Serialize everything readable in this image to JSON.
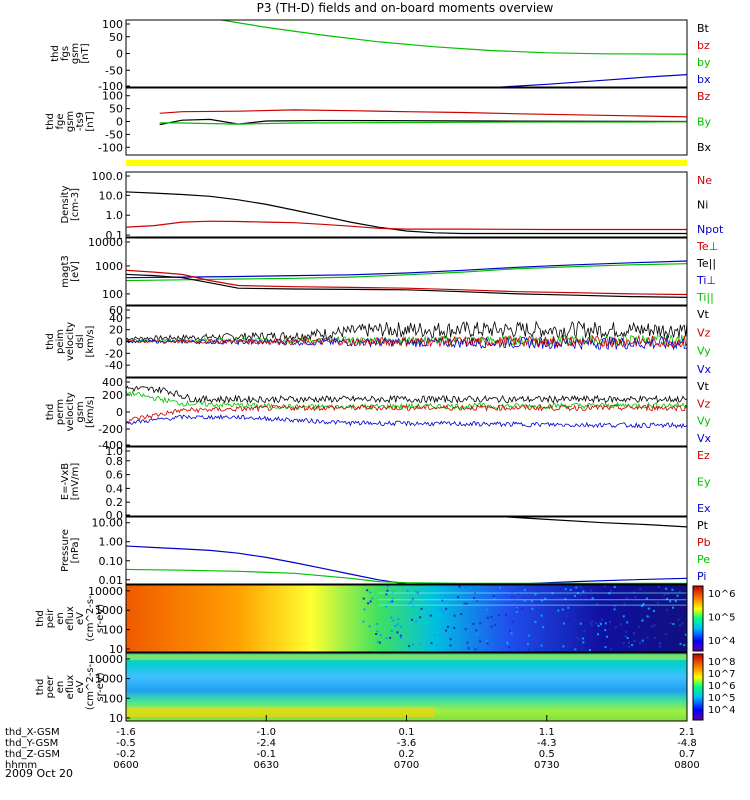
{
  "title": "P3 (TH-D) fields and on-board moments overview",
  "date": "2009 Oct 20",
  "colors": {
    "black": "#000000",
    "red": "#cc0000",
    "green": "#00c000",
    "blue": "#0000cc",
    "yellow": "#ffff00",
    "grid": "#000000"
  },
  "chart_data": {
    "type": "line",
    "x_time": [
      "0600",
      "0630",
      "0700",
      "0730",
      "0800"
    ],
    "orbit_rows": [
      {
        "label": "thd_X-GSM",
        "values": [
          "-1.6",
          "-1.0",
          "0.1",
          "1.1",
          "2.1"
        ]
      },
      {
        "label": "thd_Y-GSM",
        "values": [
          "-0.5",
          "-2.4",
          "-3.6",
          "-4.3",
          "-4.8"
        ]
      },
      {
        "label": "thd_Z-GSM",
        "values": [
          "-0.2",
          "-0.1",
          "0.2",
          "0.5",
          "0.7"
        ]
      },
      {
        "label": "hhmm",
        "values": [
          "0600",
          "0630",
          "0700",
          "0730",
          "0800"
        ]
      }
    ],
    "panels": [
      {
        "id": "fgs",
        "ylabel": [
          "thd",
          "fgs",
          "gsm",
          "[nT]"
        ],
        "scale": "linear",
        "ylim": [
          -100,
          100
        ],
        "ticks": [
          "100",
          "50",
          "0",
          "-50",
          "-100"
        ],
        "legend": [
          {
            "text": "Bt",
            "color": "#000000"
          },
          {
            "text": "bz",
            "color": "#cc0000"
          },
          {
            "text": "by",
            "color": "#00c000"
          },
          {
            "text": "bx",
            "color": "#0000cc"
          }
        ],
        "series": [
          {
            "color": "#00c000",
            "x": [
              0.17,
              0.25,
              0.35,
              0.45,
              0.55,
              0.65,
              0.75,
              0.85,
              1.0
            ],
            "y": [
              100,
              78,
              55,
              35,
              20,
              9,
              2,
              -1,
              -2
            ]
          },
          {
            "color": "#0000cc",
            "x": [
              0.67,
              0.75,
              0.85,
              0.93,
              1.0
            ],
            "y": [
              -100,
              -92,
              -80,
              -70,
              -63
            ]
          }
        ]
      },
      {
        "id": "fge",
        "ylabel": [
          "thd",
          "fge",
          "gsm",
          "-ts9",
          "[nT]"
        ],
        "scale": "linear",
        "ylim": [
          -130,
          130
        ],
        "ticks": [
          "100",
          "50",
          "0",
          "-50",
          "-100"
        ],
        "legend": [
          {
            "text": "Bz",
            "color": "#cc0000"
          },
          {
            "text": "By",
            "color": "#00c000"
          },
          {
            "text": "Bx",
            "color": "#000000"
          }
        ],
        "series": [
          {
            "color": "#cc0000",
            "x": [
              0.06,
              0.1,
              0.2,
              0.3,
              0.4,
              0.5,
              0.6,
              0.7,
              0.8,
              0.9,
              1.0
            ],
            "y": [
              32,
              38,
              40,
              45,
              42,
              38,
              35,
              30,
              26,
              22,
              18
            ]
          },
          {
            "color": "#000000",
            "x": [
              0.06,
              0.1,
              0.15,
              0.2,
              0.25,
              0.35,
              0.5,
              0.65,
              0.8,
              1.0
            ],
            "y": [
              -12,
              5,
              8,
              -10,
              2,
              4,
              3,
              2,
              1,
              0
            ]
          },
          {
            "color": "#00c000",
            "x": [
              0.06,
              0.1,
              0.2,
              0.3,
              0.4,
              0.5,
              0.6,
              0.7,
              0.8,
              0.9,
              1.0
            ],
            "y": [
              -5,
              -6,
              -10,
              -6,
              -5,
              -4,
              -3,
              -2,
              -2,
              -2,
              -1
            ]
          }
        ]
      },
      {
        "id": "density",
        "ylabel": [
          "Density",
          "[cm-3]"
        ],
        "scale": "log",
        "ylim": [
          0.08,
          150
        ],
        "ticks": [
          "100.0",
          "10.0",
          "1.0",
          "0.1"
        ],
        "legend": [
          {
            "text": "Ne",
            "color": "#cc0000"
          },
          {
            "text": "Ni",
            "color": "#000000"
          },
          {
            "text": "Npot",
            "color": "#0000cc"
          }
        ],
        "series": [
          {
            "color": "#000000",
            "x": [
              0.0,
              0.05,
              0.1,
              0.15,
              0.2,
              0.25,
              0.3,
              0.35,
              0.4,
              0.45,
              0.5,
              0.55,
              0.6,
              1.0
            ],
            "y": [
              15,
              13,
              11,
              9,
              6,
              3.5,
              1.8,
              0.9,
              0.45,
              0.25,
              0.16,
              0.13,
              0.12,
              0.12
            ]
          },
          {
            "color": "#cc0000",
            "x": [
              0.0,
              0.05,
              0.1,
              0.15,
              0.2,
              0.25,
              0.3,
              0.35,
              0.4,
              0.45,
              0.5,
              0.6,
              0.75,
              1.0
            ],
            "y": [
              0.25,
              0.3,
              0.45,
              0.5,
              0.48,
              0.45,
              0.42,
              0.35,
              0.28,
              0.22,
              0.2,
              0.2,
              0.19,
              0.19
            ]
          }
        ]
      },
      {
        "id": "temp",
        "ylabel": [
          "magt3",
          "[eV]"
        ],
        "scale": "log",
        "ylim": [
          40,
          10000
        ],
        "ticks": [
          "10000",
          "1000",
          "100"
        ],
        "legend": [
          {
            "text": "Te⊥",
            "color": "#cc0000"
          },
          {
            "text": "Te||",
            "color": "#000000"
          },
          {
            "text": "Ti⊥",
            "color": "#0000cc"
          },
          {
            "text": "Ti||",
            "color": "#00c000"
          }
        ],
        "series": [
          {
            "color": "#0000cc",
            "x": [
              0.0,
              0.1,
              0.2,
              0.3,
              0.4,
              0.5,
              0.6,
              0.7,
              0.8,
              0.9,
              1.0
            ],
            "y": [
              380,
              400,
              420,
              450,
              480,
              560,
              700,
              900,
              1100,
              1300,
              1500
            ]
          },
          {
            "color": "#00c000",
            "x": [
              0.0,
              0.1,
              0.2,
              0.3,
              0.4,
              0.5,
              0.6,
              0.7,
              0.8,
              0.9,
              1.0
            ],
            "y": [
              300,
              320,
              340,
              360,
              400,
              480,
              600,
              800,
              950,
              1100,
              1200
            ]
          },
          {
            "color": "#cc0000",
            "x": [
              0.0,
              0.05,
              0.1,
              0.15,
              0.2,
              0.3,
              0.4,
              0.5,
              0.6,
              0.7,
              0.8,
              0.9,
              1.0
            ],
            "y": [
              700,
              600,
              500,
              300,
              200,
              180,
              170,
              160,
              140,
              120,
              110,
              100,
              95
            ]
          },
          {
            "color": "#000000",
            "x": [
              0.0,
              0.05,
              0.1,
              0.15,
              0.2,
              0.3,
              0.4,
              0.5,
              0.6,
              0.7,
              0.8,
              0.9,
              1.0
            ],
            "y": [
              500,
              450,
              380,
              250,
              160,
              150,
              145,
              140,
              120,
              100,
              90,
              80,
              75
            ]
          }
        ]
      },
      {
        "id": "vel_perm_elec",
        "ylabel": [
          "thd",
          "peim",
          "velocity",
          "dsl",
          "[km/s]"
        ],
        "scale": "linear",
        "ylim": [
          -60,
          60
        ],
        "ticks": [
          "60",
          "40",
          "20",
          "0",
          "-20",
          "-40"
        ],
        "legend": [
          {
            "text": "Vt",
            "color": "#000000"
          },
          {
            "text": "Vz",
            "color": "#cc0000"
          },
          {
            "text": "Vy",
            "color": "#00c000"
          },
          {
            "text": "Vx",
            "color": "#0000cc"
          }
        ],
        "noise": [
          {
            "color": "#000000",
            "base": [
              [
                0,
                5
              ],
              [
                0.3,
                10
              ],
              [
                0.45,
                20
              ],
              [
                1.0,
                20
              ]
            ],
            "amp": [
              [
                0,
                3
              ],
              [
                0.3,
                8
              ],
              [
                0.5,
                14
              ],
              [
                1.0,
                14
              ]
            ]
          },
          {
            "color": "#00c000",
            "base": [
              [
                0,
                2
              ],
              [
                1.0,
                2
              ]
            ],
            "amp": [
              [
                0,
                2
              ],
              [
                0.4,
                6
              ],
              [
                1.0,
                10
              ]
            ]
          },
          {
            "color": "#0000cc",
            "base": [
              [
                0,
                0
              ],
              [
                1.0,
                -3
              ]
            ],
            "amp": [
              [
                0,
                2
              ],
              [
                0.5,
                8
              ],
              [
                1.0,
                12
              ]
            ]
          },
          {
            "color": "#cc0000",
            "base": [
              [
                0,
                0
              ],
              [
                1.0,
                0
              ]
            ],
            "amp": [
              [
                0,
                2
              ],
              [
                0.5,
                8
              ],
              [
                1.0,
                10
              ]
            ]
          }
        ]
      },
      {
        "id": "vel_perm_ion",
        "ylabel": [
          "thd",
          "perm",
          "velocity",
          "gsm",
          "[km/s]"
        ],
        "scale": "linear",
        "ylim": [
          -400,
          400
        ],
        "ticks": [
          "400",
          "200",
          "0",
          "-200",
          "-400"
        ],
        "legend": [
          {
            "text": "Vt",
            "color": "#000000"
          },
          {
            "text": "Vz",
            "color": "#cc0000"
          },
          {
            "text": "Vy",
            "color": "#00c000"
          },
          {
            "text": "Vx",
            "color": "#0000cc"
          }
        ],
        "noise": [
          {
            "color": "#000000",
            "base": [
              [
                0,
                280
              ],
              [
                0.07,
                260
              ],
              [
                0.12,
                150
              ],
              [
                1.0,
                150
              ]
            ],
            "amp": [
              [
                0,
                40
              ],
              [
                1.0,
                40
              ]
            ]
          },
          {
            "color": "#00c000",
            "base": [
              [
                0,
                230
              ],
              [
                0.1,
                100
              ],
              [
                0.3,
                60
              ],
              [
                1.0,
                80
              ]
            ],
            "amp": [
              [
                0,
                30
              ],
              [
                1.0,
                35
              ]
            ]
          },
          {
            "color": "#cc0000",
            "base": [
              [
                0,
                -100
              ],
              [
                0.1,
                20
              ],
              [
                0.3,
                50
              ],
              [
                1.0,
                50
              ]
            ],
            "amp": [
              [
                0,
                30
              ],
              [
                1.0,
                35
              ]
            ]
          },
          {
            "color": "#0000cc",
            "base": [
              [
                0,
                -130
              ],
              [
                0.1,
                -60
              ],
              [
                0.2,
                -60
              ],
              [
                0.4,
                -130
              ],
              [
                1.0,
                -160
              ]
            ],
            "amp": [
              [
                0,
                25
              ],
              [
                1.0,
                30
              ]
            ]
          }
        ]
      },
      {
        "id": "efield",
        "ylabel": [
          "E=-VxB",
          "[mV/m]"
        ],
        "scale": "linear",
        "ylim": [
          0,
          1
        ],
        "ticks": [
          "1.0",
          "0.8",
          "0.6",
          "0.4",
          "0.2",
          "0.0"
        ],
        "legend": [
          {
            "text": "Ez",
            "color": "#cc0000"
          },
          {
            "text": "Ey",
            "color": "#00c000"
          },
          {
            "text": "Ex",
            "color": "#0000cc"
          }
        ],
        "series": []
      },
      {
        "id": "pressure",
        "ylabel": [
          "Pressure",
          "[nPa]"
        ],
        "scale": "log",
        "ylim": [
          0.006,
          20
        ],
        "ticks": [
          "10.00",
          "1.00",
          "0.10",
          "0.01"
        ],
        "legend": [
          {
            "text": "Pt",
            "color": "#000000"
          },
          {
            "text": "Pb",
            "color": "#cc0000"
          },
          {
            "text": "Pe",
            "color": "#00c000"
          },
          {
            "text": "Pi",
            "color": "#0000cc"
          }
        ],
        "series": [
          {
            "color": "#0000cc",
            "x": [
              0.0,
              0.05,
              0.1,
              0.15,
              0.2,
              0.25,
              0.3,
              0.35,
              0.4,
              0.45,
              0.5,
              0.55,
              0.6,
              0.7,
              0.8,
              0.9,
              1.0
            ],
            "y": [
              0.6,
              0.5,
              0.42,
              0.35,
              0.25,
              0.15,
              0.08,
              0.04,
              0.02,
              0.01,
              0.006,
              0.005,
              0.0055,
              0.006,
              0.008,
              0.01,
              0.012
            ]
          },
          {
            "color": "#00c000",
            "x": [
              0.0,
              0.1,
              0.2,
              0.3,
              0.4,
              0.45,
              0.5,
              0.6,
              0.7,
              0.8,
              0.9,
              1.0
            ],
            "y": [
              0.035,
              0.032,
              0.028,
              0.022,
              0.012,
              0.008,
              0.007,
              0.0065,
              0.0065,
              0.0065,
              0.0065,
              0.0065
            ]
          },
          {
            "color": "#000000",
            "x": [
              0.68,
              0.75,
              0.85,
              0.93,
              1.0
            ],
            "y": [
              20,
              15,
              10,
              8,
              6
            ]
          }
        ]
      },
      {
        "id": "eflux_ion",
        "ylabel": [
          "thd",
          "peir",
          "en",
          "eflux",
          "eV",
          "(cm^2-s-",
          "sr-eV)"
        ],
        "scale": "log",
        "ylim": [
          7,
          20000
        ],
        "ticks": [
          "10000",
          "1000",
          "100",
          "10"
        ],
        "colorbar": [
          "10^6",
          "10^5",
          "10^4"
        ]
      },
      {
        "id": "eflux_elec",
        "ylabel": [
          "thd",
          "peer",
          "en",
          "eflux",
          "eV",
          "(cm^2-s-",
          "sr-eV)"
        ],
        "scale": "log",
        "ylim": [
          7,
          20000
        ],
        "ticks": [
          "10000",
          "1000",
          "100",
          "10"
        ],
        "colorbar": [
          "10^8",
          "10^7",
          "10^6",
          "10^5",
          "10^4"
        ]
      }
    ]
  }
}
